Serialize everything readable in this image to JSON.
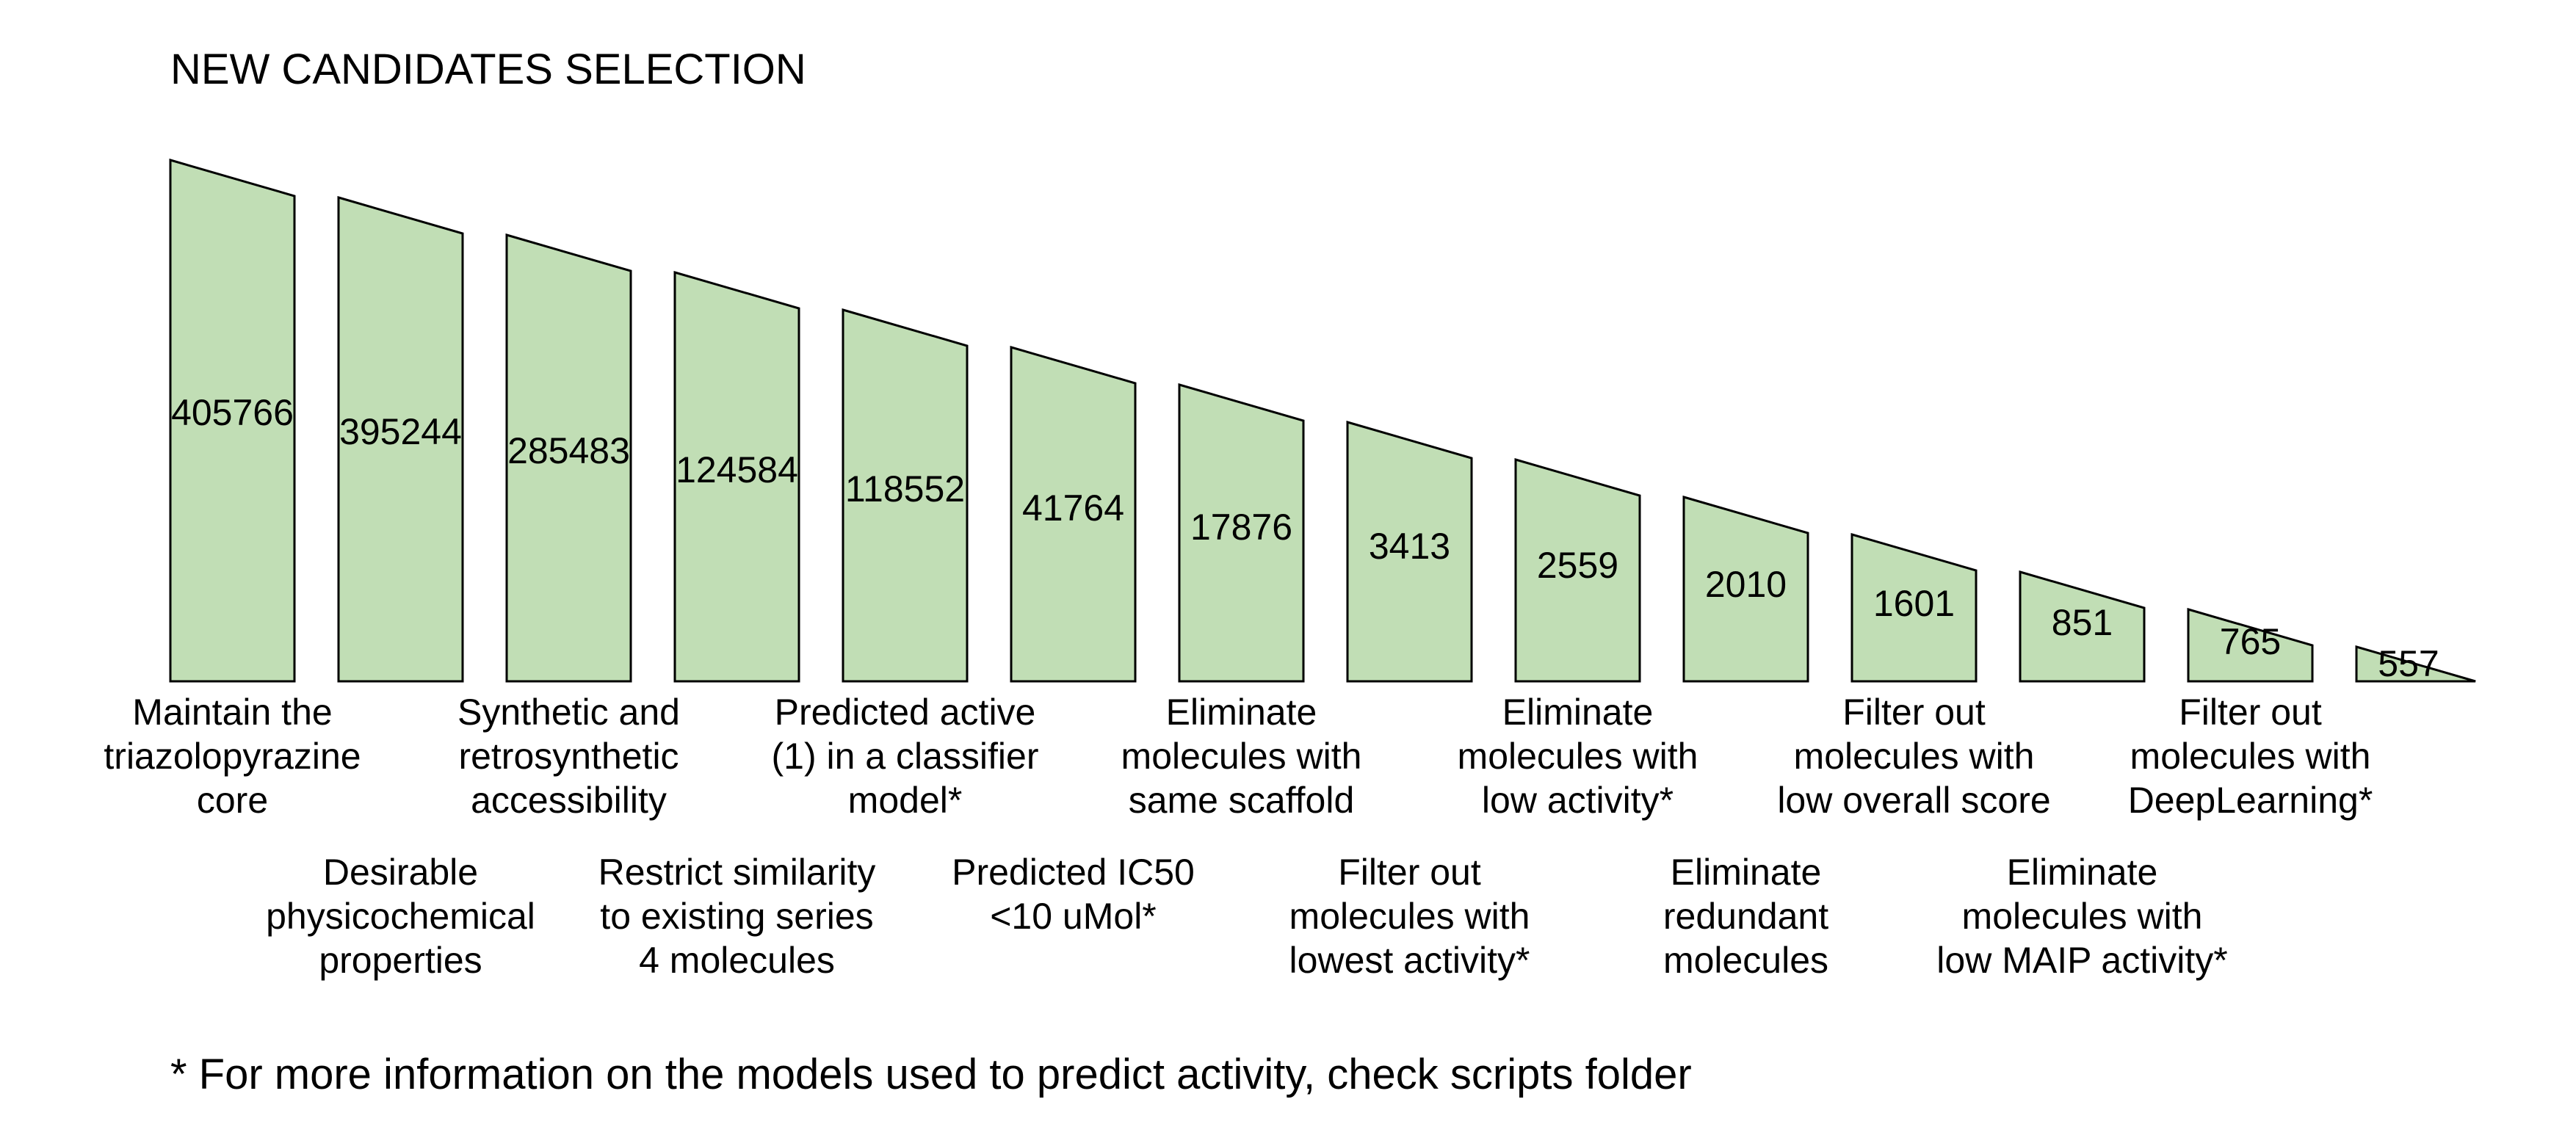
{
  "title": "NEW CANDIDATES SELECTION",
  "footnote": "* For more information on the models used to predict activity, check scripts folder",
  "colors": {
    "box_fill": "#c1deb5",
    "box_stroke": "#000000",
    "text": "#000000",
    "background": "#ffffff"
  },
  "steps": [
    {
      "value": "405766",
      "label": [
        "Maintain the",
        "triazolopyrazine",
        "core"
      ]
    },
    {
      "value": "395244",
      "label": [
        "Desirable",
        "physicochemical",
        "properties"
      ]
    },
    {
      "value": "285483",
      "label": [
        "Synthetic and",
        "retrosynthetic",
        "accessibility"
      ]
    },
    {
      "value": "124584",
      "label": [
        "Restrict similarity",
        "to existing series",
        "4 molecules"
      ]
    },
    {
      "value": "118552",
      "label": [
        "Predicted active",
        "(1) in a classifier",
        "model*"
      ]
    },
    {
      "value": "41764",
      "label": [
        "Predicted IC50",
        "<10 uMol*"
      ]
    },
    {
      "value": "17876",
      "label": [
        "Eliminate",
        "molecules with",
        "same scaffold"
      ]
    },
    {
      "value": "3413",
      "label": [
        "Filter out",
        "molecules with",
        "lowest activity*"
      ]
    },
    {
      "value": "2559",
      "label": [
        "Eliminate",
        "molecules with",
        "low activity*"
      ]
    },
    {
      "value": "2010",
      "label": [
        "Eliminate",
        "redundant",
        "molecules"
      ]
    },
    {
      "value": "1601",
      "label": [
        "Filter out",
        "molecules with",
        "low overall score"
      ]
    },
    {
      "value": "851",
      "label": [
        "Eliminate",
        "molecules with",
        "low MAIP activity*"
      ]
    },
    {
      "value": "765",
      "label": [
        "Filter out",
        "molecules with",
        "DeepLearning*"
      ]
    },
    {
      "value": "557",
      "label": []
    }
  ]
}
